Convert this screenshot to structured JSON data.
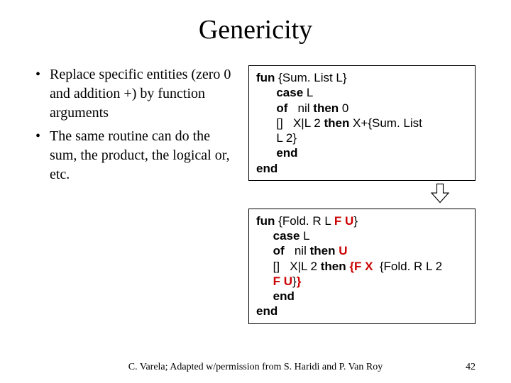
{
  "title": "Genericity",
  "bullets": [
    "Replace specific entities (zero 0 and addition +) by function arguments",
    "The same routine can do the sum, the product, the logical or, etc."
  ],
  "code1": {
    "lines": [
      [
        {
          "t": "fun",
          "kw": true
        },
        {
          "t": " {Sum. List L}"
        }
      ],
      [
        {
          "t": "      "
        },
        {
          "t": "case",
          "kw": true
        },
        {
          "t": " L"
        }
      ],
      [
        {
          "t": "      "
        },
        {
          "t": "of",
          "kw": true
        },
        {
          "t": "   nil "
        },
        {
          "t": "then",
          "kw": true
        },
        {
          "t": " 0"
        }
      ],
      [
        {
          "t": "      []   X|L 2 "
        },
        {
          "t": "then",
          "kw": true
        },
        {
          "t": " X+{Sum. List"
        }
      ],
      [
        {
          "t": "      L 2}"
        }
      ],
      [
        {
          "t": "      "
        },
        {
          "t": "end",
          "kw": true
        }
      ],
      [
        {
          "t": "end",
          "kw": true
        }
      ]
    ]
  },
  "code2": {
    "lines": [
      [
        {
          "t": "fun",
          "kw": true
        },
        {
          "t": " {Fold. R L "
        },
        {
          "t": "F",
          "hl": true
        },
        {
          "t": " "
        },
        {
          "t": "U",
          "hl": true
        },
        {
          "t": "}"
        }
      ],
      [
        {
          "t": "     "
        },
        {
          "t": "case",
          "kw": true
        },
        {
          "t": " L"
        }
      ],
      [
        {
          "t": "     "
        },
        {
          "t": "of",
          "kw": true
        },
        {
          "t": "   nil "
        },
        {
          "t": "then",
          "kw": true
        },
        {
          "t": " "
        },
        {
          "t": "U",
          "hl": true
        }
      ],
      [
        {
          "t": "     []   X|L 2 "
        },
        {
          "t": "then",
          "kw": true
        },
        {
          "t": " "
        },
        {
          "t": "{F X",
          "hl": true
        },
        {
          "t": "  {Fold. R L 2"
        }
      ],
      [
        {
          "t": "     "
        },
        {
          "t": "F",
          "hl": true
        },
        {
          "t": " "
        },
        {
          "t": "U",
          "hl": true
        },
        {
          "t": "}"
        },
        {
          "t": "}",
          "hl": true
        }
      ],
      [
        {
          "t": "     "
        },
        {
          "t": "end",
          "kw": true
        }
      ],
      [
        {
          "t": "end",
          "kw": true
        }
      ]
    ]
  },
  "arrow": {
    "stroke": "#000000",
    "fill": "#ffffff",
    "stroke_width": 1.5
  },
  "footer": {
    "text": "C. Varela; Adapted w/permission from S. Haridi and P. Van Roy",
    "page": "42"
  },
  "colors": {
    "text": "#000000",
    "highlight": "#cc0000",
    "background": "#ffffff",
    "border": "#000000"
  },
  "fonts": {
    "title_family": "Times New Roman",
    "title_size_pt": 30,
    "body_family": "Times New Roman",
    "body_size_pt": 16,
    "code_family": "Arial",
    "code_size_pt": 13,
    "footer_size_pt": 11
  }
}
